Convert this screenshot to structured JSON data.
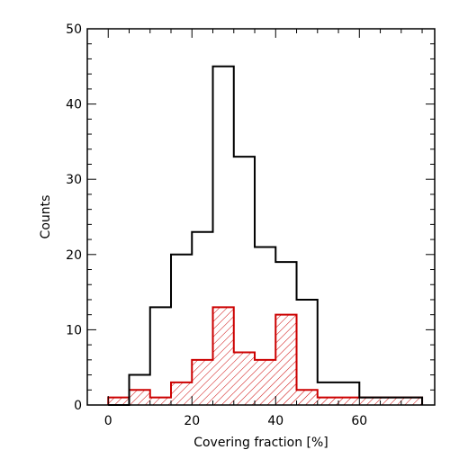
{
  "chart_data": {
    "type": "histogram",
    "xlabel": "Covering fraction [%]",
    "ylabel": "Counts",
    "xlim": [
      -5,
      78
    ],
    "ylim": [
      0,
      50
    ],
    "xticks": [
      "0",
      "20",
      "40",
      "60"
    ],
    "yticks": [
      "0",
      "10",
      "20",
      "30",
      "40",
      "50"
    ],
    "grid": false,
    "series": [
      {
        "style": "step",
        "color": "#000000",
        "bins": [
          {
            "x0": 0,
            "x1": 5,
            "value": 0
          },
          {
            "x0": 5,
            "x1": 10,
            "value": 4
          },
          {
            "x0": 10,
            "x1": 15,
            "value": 13
          },
          {
            "x0": 15,
            "x1": 20,
            "value": 20
          },
          {
            "x0": 20,
            "x1": 25,
            "value": 23
          },
          {
            "x0": 25,
            "x1": 30,
            "value": 45
          },
          {
            "x0": 30,
            "x1": 35,
            "value": 33
          },
          {
            "x0": 35,
            "x1": 40,
            "value": 21
          },
          {
            "x0": 40,
            "x1": 45,
            "value": 19
          },
          {
            "x0": 45,
            "x1": 50,
            "value": 14
          },
          {
            "x0": 50,
            "x1": 60,
            "value": 3
          },
          {
            "x0": 60,
            "x1": 75,
            "value": 1
          }
        ]
      },
      {
        "style": "hatched-step",
        "color": "#cc0000",
        "bins": [
          {
            "x0": 0,
            "x1": 5,
            "value": 1
          },
          {
            "x0": 5,
            "x1": 10,
            "value": 2
          },
          {
            "x0": 10,
            "x1": 15,
            "value": 1
          },
          {
            "x0": 15,
            "x1": 20,
            "value": 3
          },
          {
            "x0": 20,
            "x1": 25,
            "value": 6
          },
          {
            "x0": 25,
            "x1": 30,
            "value": 13
          },
          {
            "x0": 30,
            "x1": 35,
            "value": 7
          },
          {
            "x0": 35,
            "x1": 40,
            "value": 6
          },
          {
            "x0": 40,
            "x1": 45,
            "value": 12
          },
          {
            "x0": 45,
            "x1": 50,
            "value": 2
          },
          {
            "x0": 50,
            "x1": 75,
            "value": 1
          }
        ]
      }
    ]
  }
}
